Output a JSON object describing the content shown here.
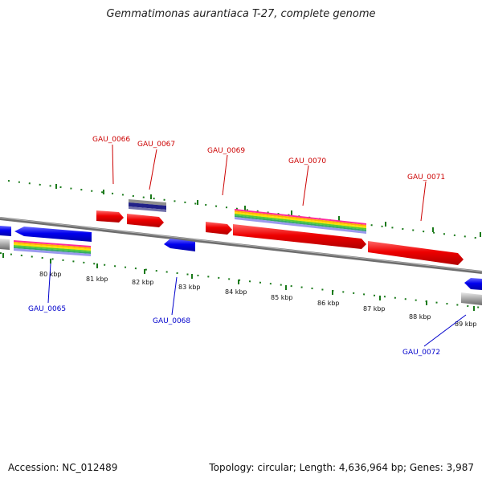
{
  "header": {
    "title": "Gemmatimonas aurantiaca T-27, complete genome"
  },
  "footer": {
    "accession": "Accession: NC_012489",
    "summary": "Topology: circular; Length: 4,636,964 bp; Genes: 3,987"
  },
  "scale": {
    "kbp_labels": [
      "80 kbp",
      "81 kbp",
      "82 kbp",
      "83 kbp",
      "84 kbp",
      "85 kbp",
      "86 kbp",
      "87 kbp",
      "88 kbp",
      "89 kbp"
    ]
  },
  "genes": [
    {
      "id": "GAU_0065",
      "strand": "reverse"
    },
    {
      "id": "GAU_0066",
      "strand": "forward"
    },
    {
      "id": "GAU_0067",
      "strand": "forward"
    },
    {
      "id": "GAU_0068",
      "strand": "reverse"
    },
    {
      "id": "GAU_0069",
      "strand": "forward"
    },
    {
      "id": "GAU_0070",
      "strand": "forward"
    },
    {
      "id": "GAU_0071",
      "strand": "forward"
    },
    {
      "id": "GAU_0072",
      "strand": "reverse"
    }
  ],
  "colors": {
    "forward_gene": "#ee0000",
    "reverse_gene": "#0000ee",
    "forward_label": "#cc0000",
    "reverse_label": "#0000cc",
    "tick": "#1a7a1a",
    "backbone": "#808080"
  }
}
